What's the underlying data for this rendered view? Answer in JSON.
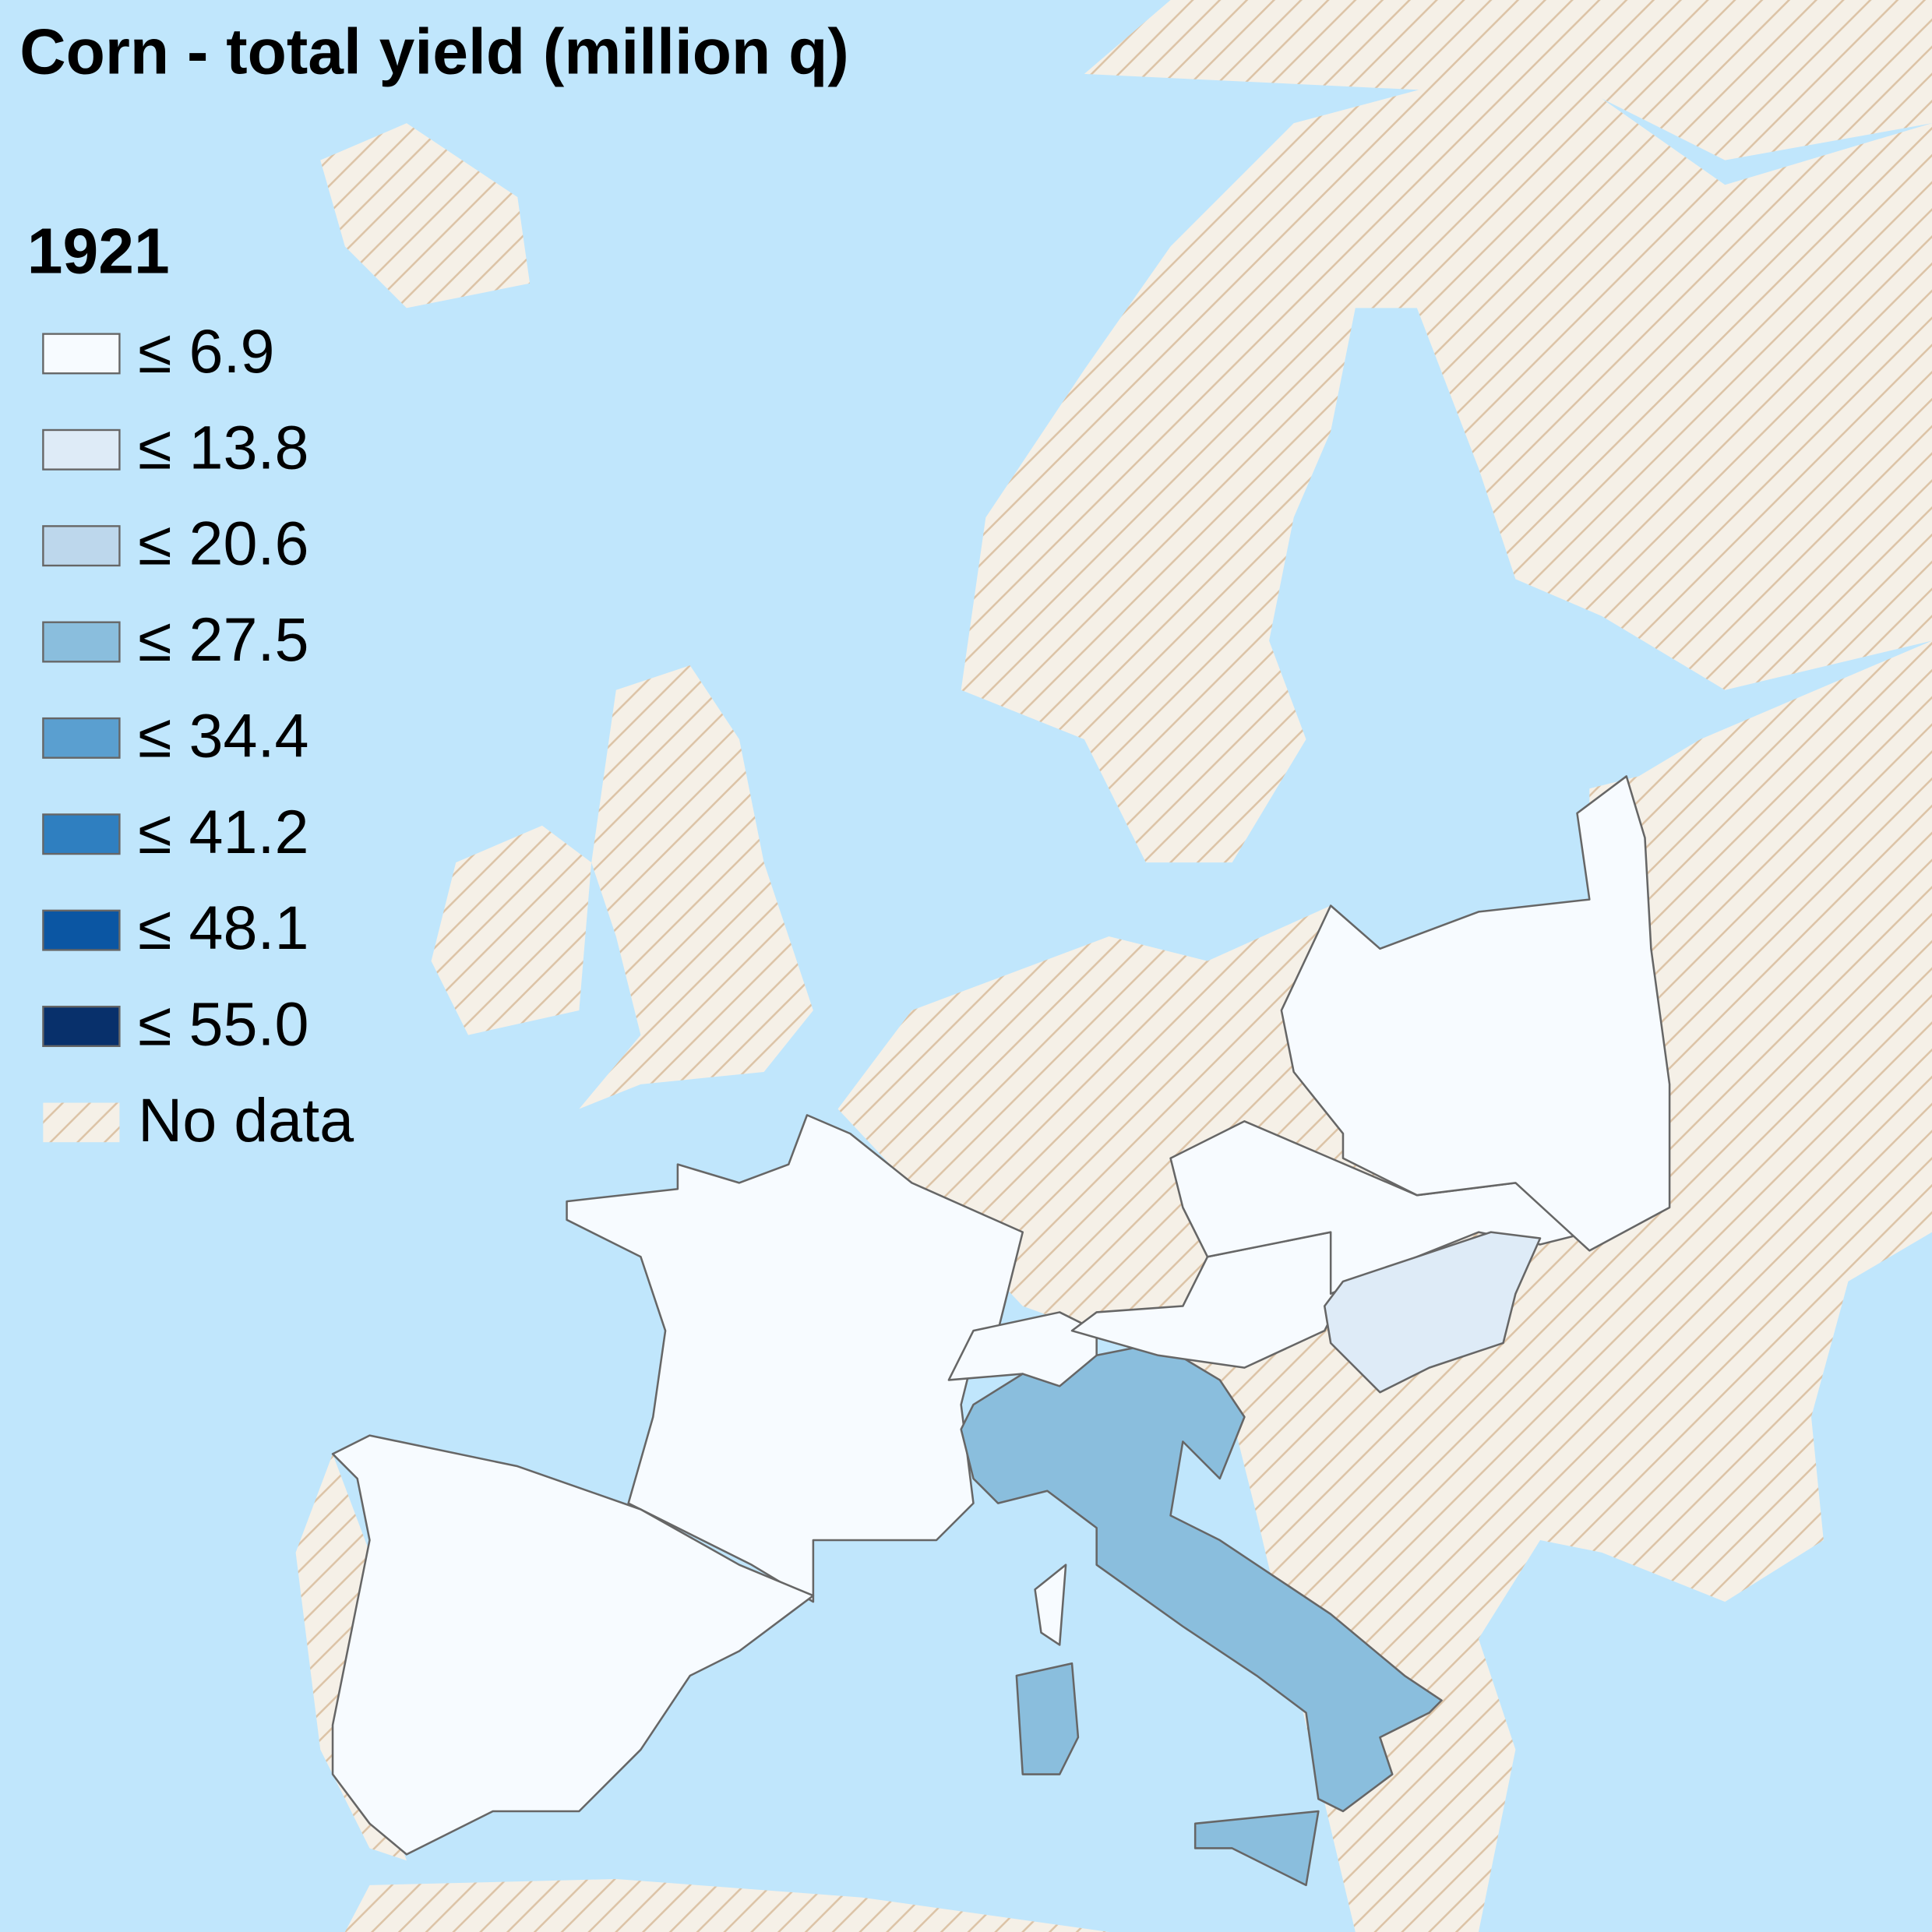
{
  "title": "Corn - total yield (million q)",
  "legend": {
    "title": "1921",
    "items": [
      {
        "label": "≤ 6.9",
        "color": "#f7fbff"
      },
      {
        "label": "≤ 13.8",
        "color": "#deebf7"
      },
      {
        "label": "≤ 20.6",
        "color": "#bdd7ec"
      },
      {
        "label": "≤ 27.5",
        "color": "#8abedd"
      },
      {
        "label": "≤ 34.4",
        "color": "#5a9fd0"
      },
      {
        "label": "≤ 41.2",
        "color": "#2f7fc0"
      },
      {
        "label": "≤ 48.1",
        "color": "#0b56a3"
      },
      {
        "label": "≤ 55.0",
        "color": "#08306b"
      },
      {
        "label": "No data"
      }
    ]
  }
}
